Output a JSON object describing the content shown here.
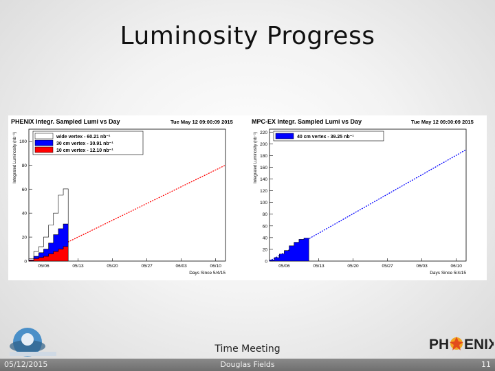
{
  "slide": {
    "title": "Luminosity Progress",
    "meeting": "Time Meeting",
    "date": "05/12/2015",
    "author": "Douglas Fields",
    "page": "11",
    "logo_right_text": "PH★ENIX"
  },
  "chart_data": [
    {
      "type": "line",
      "title": "PHENIX Integr. Sampled Lumi vs Day",
      "timestamp": "Tue May 12 09:00:09 2015",
      "xlabel": "Days Since 5/4/15",
      "ylabel": "Integrated Luminosity (nb⁻¹)",
      "x_ticks": [
        "05/06",
        "05/13",
        "05/20",
        "05/27",
        "06/03",
        "06/10"
      ],
      "y_ticks": [
        0,
        20,
        40,
        60,
        80,
        100
      ],
      "xlim": [
        0,
        40
      ],
      "ylim": [
        0,
        110
      ],
      "legend": "top-left",
      "series": [
        {
          "name": "wide vertex - 60.21 nb⁻¹",
          "color": "#ffffff",
          "x": [
            1,
            2,
            3,
            4,
            5,
            6,
            7,
            8
          ],
          "values": [
            2,
            8,
            12,
            20,
            30,
            40,
            55,
            60.21
          ]
        },
        {
          "name": "30 cm vertex - 30.91 nb⁻¹",
          "color": "#0000ff",
          "x": [
            1,
            2,
            3,
            4,
            5,
            6,
            7,
            8
          ],
          "values": [
            1,
            4,
            7,
            10,
            15,
            22,
            27,
            30.91
          ]
        },
        {
          "name": "10 cm vertex - 12.10 nb⁻¹",
          "color": "#ff0000",
          "x": [
            1,
            2,
            3,
            4,
            5,
            6,
            7,
            8
          ],
          "values": [
            0.5,
            2,
            3,
            4,
            6,
            8,
            10,
            12.1
          ]
        }
      ],
      "projection": {
        "color": "#ff0000",
        "x": [
          0,
          40
        ],
        "values": [
          0,
          80
        ]
      }
    },
    {
      "type": "line",
      "title": "MPC-EX Integr. Sampled Lumi vs Day",
      "timestamp": "Tue May 12 09:00:09 2015",
      "xlabel": "Days Since 5/4/15",
      "ylabel": "Integrated Luminosity (nb⁻¹)",
      "x_ticks": [
        "05/06",
        "05/13",
        "05/20",
        "05/27",
        "06/03",
        "06/10"
      ],
      "y_ticks": [
        0,
        20,
        40,
        60,
        80,
        100,
        120,
        140,
        160,
        180,
        200,
        220
      ],
      "xlim": [
        0,
        40
      ],
      "ylim": [
        0,
        225
      ],
      "legend": "top-left",
      "series": [
        {
          "name": "40 cm vertex - 39.25 nb⁻¹",
          "color": "#0000ff",
          "x": [
            1,
            2,
            3,
            4,
            5,
            6,
            7,
            8
          ],
          "values": [
            2,
            6,
            12,
            18,
            26,
            32,
            37,
            39.25
          ]
        }
      ],
      "projection": {
        "color": "#0000ff",
        "x": [
          0,
          40
        ],
        "values": [
          0,
          190
        ]
      }
    }
  ]
}
